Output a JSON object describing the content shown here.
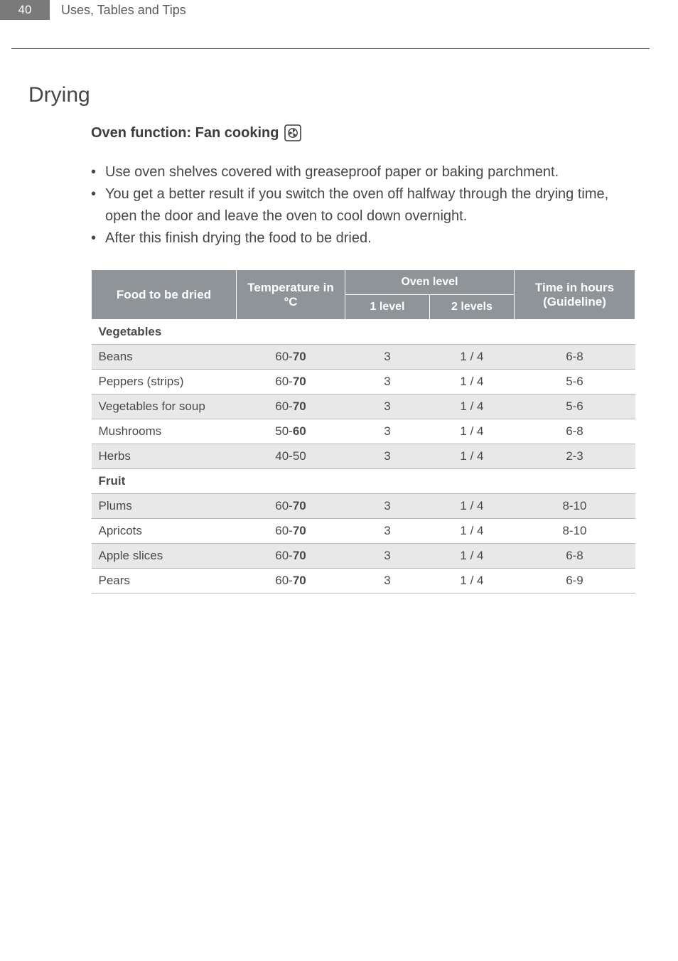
{
  "header": {
    "page_number": "40",
    "section": "Uses, Tables and Tips"
  },
  "title": "Drying",
  "oven_function_label": "Oven function: Fan cooking",
  "bullets": [
    "Use oven shelves covered with greaseproof paper or baking parchment.",
    "You get a better result if you switch the oven off halfway through the drying time, open the door and leave the oven to cool down overnight.",
    "After this finish drying the food to be dried."
  ],
  "table": {
    "headers": {
      "food": "Food to be dried",
      "temp_line1": "Temperature in",
      "temp_line2": "°C",
      "oven_level": "Oven level",
      "level1": "1 level",
      "level2": "2 levels",
      "time_line1": "Time in hours",
      "time_line2": "(Guideline)"
    },
    "colors": {
      "header_bg": "#8e9497",
      "header_fg": "#ffffff",
      "row_alt_bg": "#e8e8e8",
      "border": "#b8b8b8",
      "text": "#4a4a4a"
    },
    "categories": [
      {
        "name": "Vegetables",
        "rows": [
          {
            "food": "Beans",
            "temp_pre": "60-",
            "temp_bold": "70",
            "l1": "3",
            "l2": "1 / 4",
            "time": "6-8",
            "alt": true
          },
          {
            "food": "Peppers (strips)",
            "temp_pre": "60-",
            "temp_bold": "70",
            "l1": "3",
            "l2": "1 / 4",
            "time": "5-6",
            "alt": false
          },
          {
            "food": "Vegetables for soup",
            "temp_pre": "60-",
            "temp_bold": "70",
            "l1": "3",
            "l2": "1 / 4",
            "time": "5-6",
            "alt": true
          },
          {
            "food": "Mushrooms",
            "temp_pre": "50-",
            "temp_bold": "60",
            "l1": "3",
            "l2": "1 / 4",
            "time": "6-8",
            "alt": false
          },
          {
            "food": "Herbs",
            "temp_pre": "40-50",
            "temp_bold": "",
            "l1": "3",
            "l2": "1 / 4",
            "time": "2-3",
            "alt": true
          }
        ]
      },
      {
        "name": "Fruit",
        "rows": [
          {
            "food": "Plums",
            "temp_pre": "60-",
            "temp_bold": "70",
            "l1": "3",
            "l2": "1 / 4",
            "time": "8-10",
            "alt": true
          },
          {
            "food": "Apricots",
            "temp_pre": "60-",
            "temp_bold": "70",
            "l1": "3",
            "l2": "1 / 4",
            "time": "8-10",
            "alt": false
          },
          {
            "food": "Apple slices",
            "temp_pre": "60-",
            "temp_bold": "70",
            "l1": "3",
            "l2": "1 / 4",
            "time": "6-8",
            "alt": true
          },
          {
            "food": "Pears",
            "temp_pre": "60-",
            "temp_bold": "70",
            "l1": "3",
            "l2": "1 / 4",
            "time": "6-9",
            "alt": false
          }
        ]
      }
    ]
  }
}
